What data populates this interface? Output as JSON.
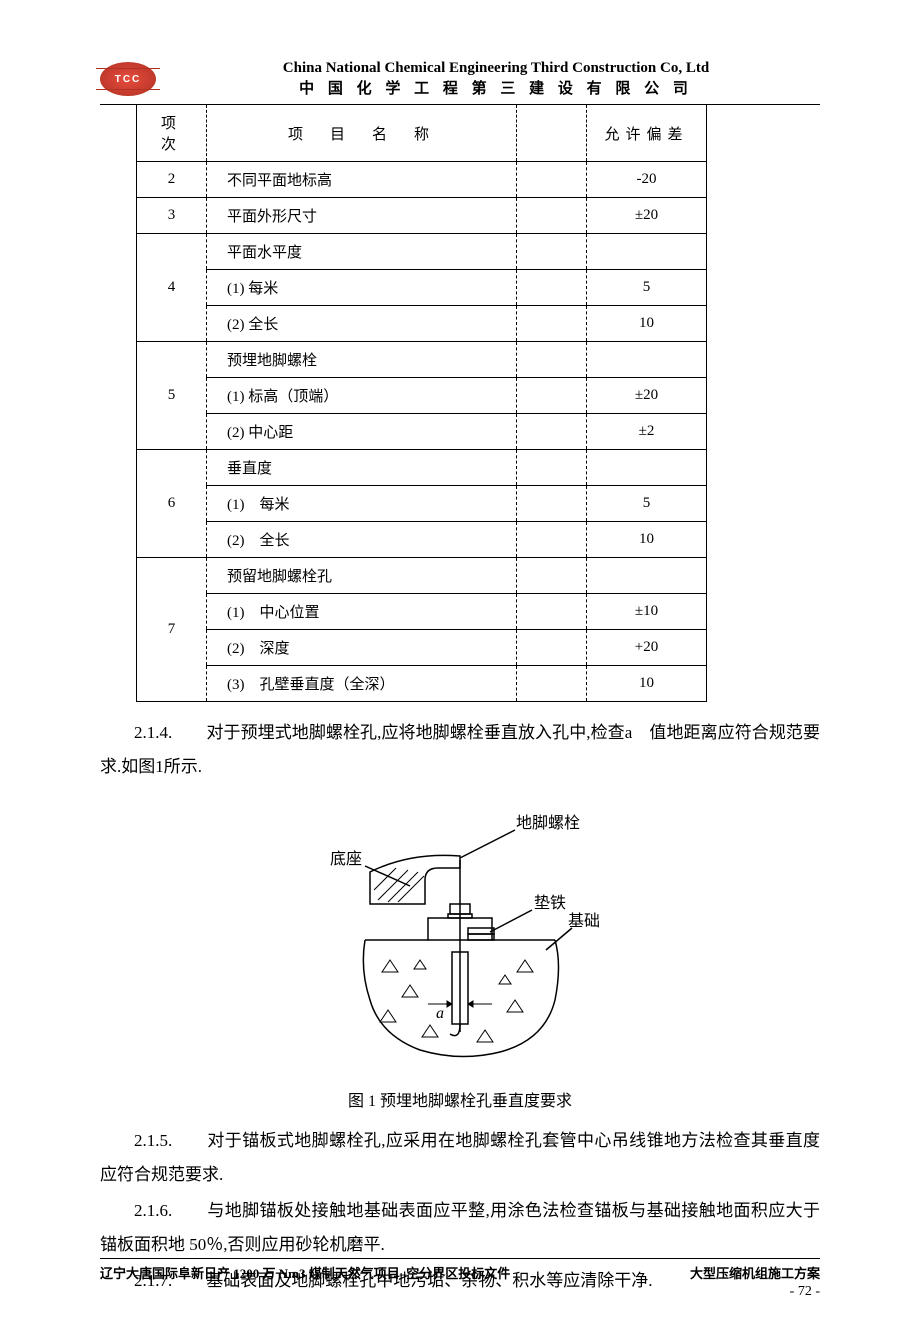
{
  "header": {
    "logo_text": "TCC",
    "company_en": "China National Chemical Engineering Third Construction Co, Ltd",
    "company_cn": "中 国 化 学 工 程 第 三 建 设 有 限 公 司"
  },
  "table": {
    "col_idx": "项次",
    "col_name": "项　目　名　称",
    "col_dev": "允许偏差",
    "rows": [
      {
        "idx": "2",
        "name": "不同平面地标高",
        "dev": "-20",
        "span": 1
      },
      {
        "idx": "3",
        "name": "平面外形尺寸",
        "dev": "±20",
        "span": 1
      },
      {
        "idx": "4",
        "name": "平面水平度",
        "sub": [
          {
            "name": "(1) 每米",
            "dev": "5"
          },
          {
            "name": "(2) 全长",
            "dev": "10"
          }
        ]
      },
      {
        "idx": "5",
        "name": "预埋地脚螺栓",
        "sub": [
          {
            "name": "(1) 标高（顶端）",
            "dev": "±20"
          },
          {
            "name": "(2) 中心距",
            "dev": "±2"
          }
        ]
      },
      {
        "idx": "6",
        "name": "垂直度",
        "sub": [
          {
            "name": "(1)　每米",
            "dev": "5"
          },
          {
            "name": "(2)　全长",
            "dev": "10"
          }
        ]
      },
      {
        "idx": "7",
        "name": "预留地脚螺栓孔",
        "sub": [
          {
            "name": "(1)　中心位置",
            "dev": "±10"
          },
          {
            "name": "(2)　深度",
            "dev": "+20"
          },
          {
            "name": "(3)　孔壁垂直度（全深）",
            "dev": "10"
          }
        ]
      }
    ]
  },
  "paragraphs": {
    "p214": "2.1.4.　　对于预埋式地脚螺栓孔,应将地脚螺栓垂直放入孔中,检查a　值地距离应符合规范要求.如图1所示.",
    "p215": "2.1.5.　　对于锚板式地脚螺栓孔,应采用在地脚螺栓孔套管中心吊线锥地方法检查其垂直度应符合规范要求.",
    "p216": "2.1.6.　　与地脚锚板处接触地基础表面应平整,用涂色法检查锚板与基础接触地面积应大于锚板面积地 50％,否则应用砂轮机磨平.",
    "p217": "2.1.7.　　基础表面及地脚螺栓孔中地污垢、杂物、积水等应清除干净."
  },
  "figure": {
    "caption": "图 1 预埋地脚螺栓孔垂直度要求",
    "labels": {
      "bolt": "地脚螺栓",
      "base": "底座",
      "shim": "垫铁",
      "found": "基础"
    },
    "colors": {
      "stroke": "#000000",
      "fill": "#ffffff",
      "bg": "#ffffff"
    }
  },
  "footer": {
    "left": "辽宁大唐国际阜新日产 1200 万 Nm3 煤制天然气项目–空分界区投标文件",
    "right": "大型压缩机组施工方案",
    "page": "- 72 -"
  }
}
